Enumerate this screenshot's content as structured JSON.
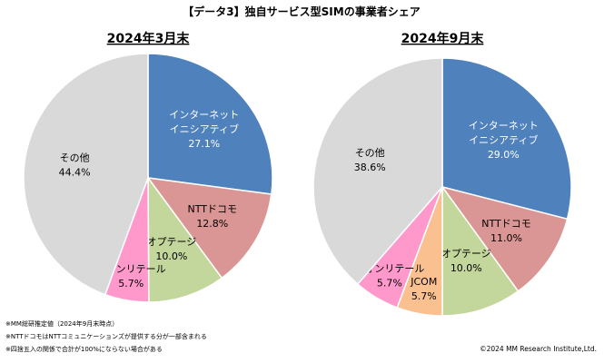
{
  "title": "【データ3】独自サービス型SIMの事業者シェア",
  "chart_data": [
    {
      "type": "pie",
      "title": "2024年3月末",
      "slices": [
        {
          "label_lines": [
            "インターネット",
            "イニシアティブ"
          ],
          "value": 27.1,
          "value_text": "27.1%",
          "color": "#4f81bd",
          "text_color": "#ffffff"
        },
        {
          "label_lines": [
            "NTTドコモ"
          ],
          "value": 12.8,
          "value_text": "12.8%",
          "color": "#d99694",
          "text_color": "#000000"
        },
        {
          "label_lines": [
            "オプテージ"
          ],
          "value": 10.0,
          "value_text": "10.0%",
          "color": "#c3d69b",
          "text_color": "#000000"
        },
        {
          "label_lines": [
            "イオンリテール"
          ],
          "value": 5.7,
          "value_text": "5.7%",
          "color": "#ff99cc",
          "text_color": "#000000"
        },
        {
          "label_lines": [
            "その他"
          ],
          "value": 44.4,
          "value_text": "44.4%",
          "color": "#d9d9d9",
          "text_color": "#000000"
        }
      ]
    },
    {
      "type": "pie",
      "title": "2024年9月末",
      "slices": [
        {
          "label_lines": [
            "インターネット",
            "イニシアティブ"
          ],
          "value": 29.0,
          "value_text": "29.0%",
          "color": "#4f81bd",
          "text_color": "#ffffff"
        },
        {
          "label_lines": [
            "NTTドコモ"
          ],
          "value": 11.0,
          "value_text": "11.0%",
          "color": "#d99694",
          "text_color": "#000000"
        },
        {
          "label_lines": [
            "オプテージ"
          ],
          "value": 10.0,
          "value_text": "10.0%",
          "color": "#c3d69b",
          "text_color": "#000000"
        },
        {
          "label_lines": [
            "JCOM"
          ],
          "value": 5.7,
          "value_text": "5.7%",
          "color": "#fac090",
          "text_color": "#000000"
        },
        {
          "label_lines": [
            "イオンリテール"
          ],
          "value": 5.7,
          "value_text": "5.7%",
          "color": "#ff99cc",
          "text_color": "#000000"
        },
        {
          "label_lines": [
            "その他"
          ],
          "value": 38.6,
          "value_text": "38.6%",
          "color": "#d9d9d9",
          "text_color": "#000000"
        }
      ]
    }
  ],
  "notes": [
    "※MM総研推定値（2024年9月末時点）",
    "※NTTドコモはNTTコミュニケーションズが提供する分が一部含まれる",
    "※四捨五入の関係で合計が100%にならない場合がある"
  ],
  "copyright": "©2024 MM Research Institute,Ltd."
}
